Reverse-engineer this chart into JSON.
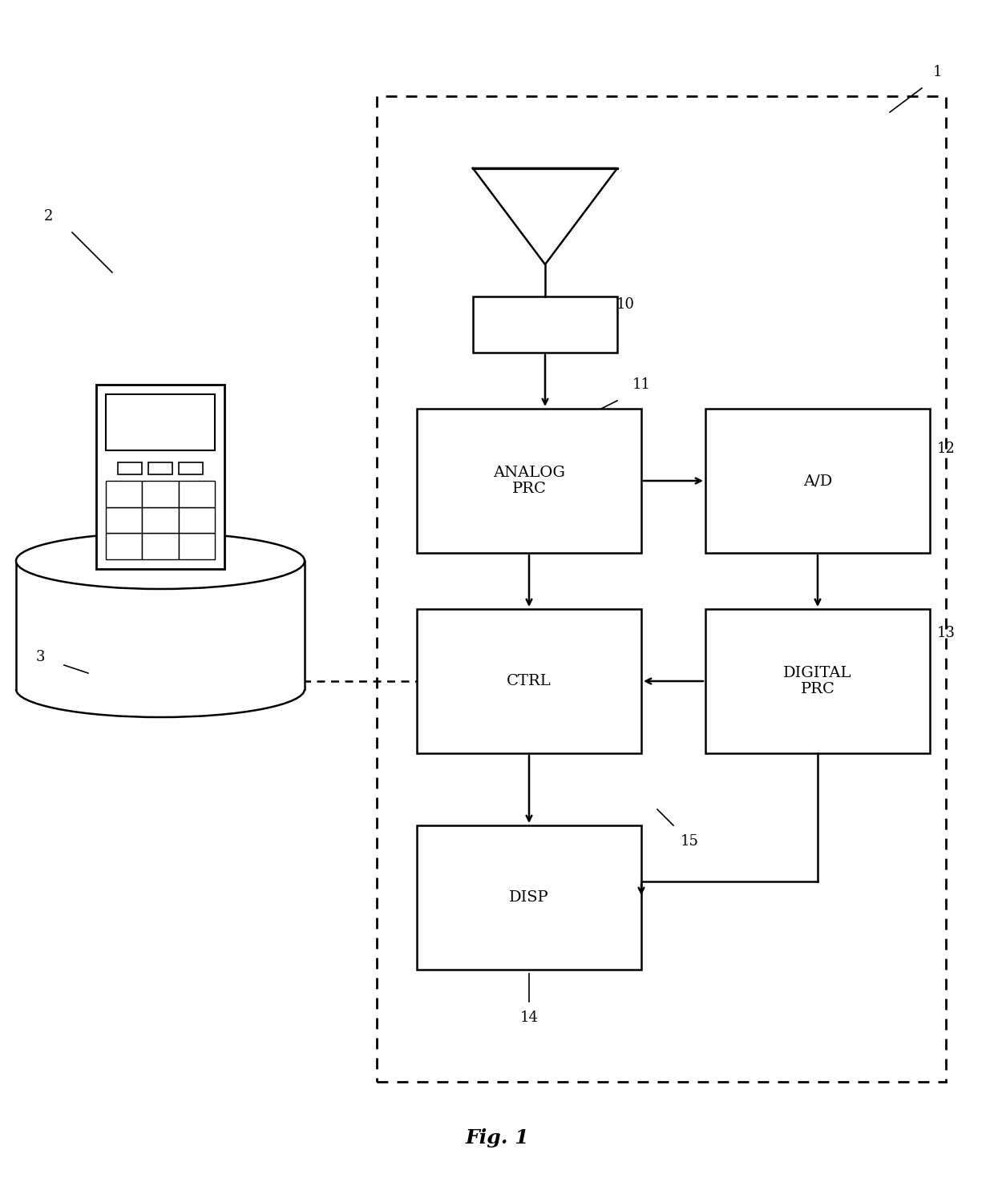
{
  "bg_color": "#ffffff",
  "line_color": "#000000",
  "box_analog_text": "ANALOG\nPRC",
  "box_ad_text": "A/D",
  "box_ctrl_text": "CTRL",
  "box_digital_text": "DIGITAL\nPRC",
  "box_disp_text": "DISP",
  "fig_caption": "Fig. 1",
  "label_1": "1",
  "label_2": "2",
  "label_3": "3",
  "label_10": "10",
  "label_11": "11",
  "label_12": "12",
  "label_13": "13",
  "label_14": "14",
  "label_15": "15"
}
